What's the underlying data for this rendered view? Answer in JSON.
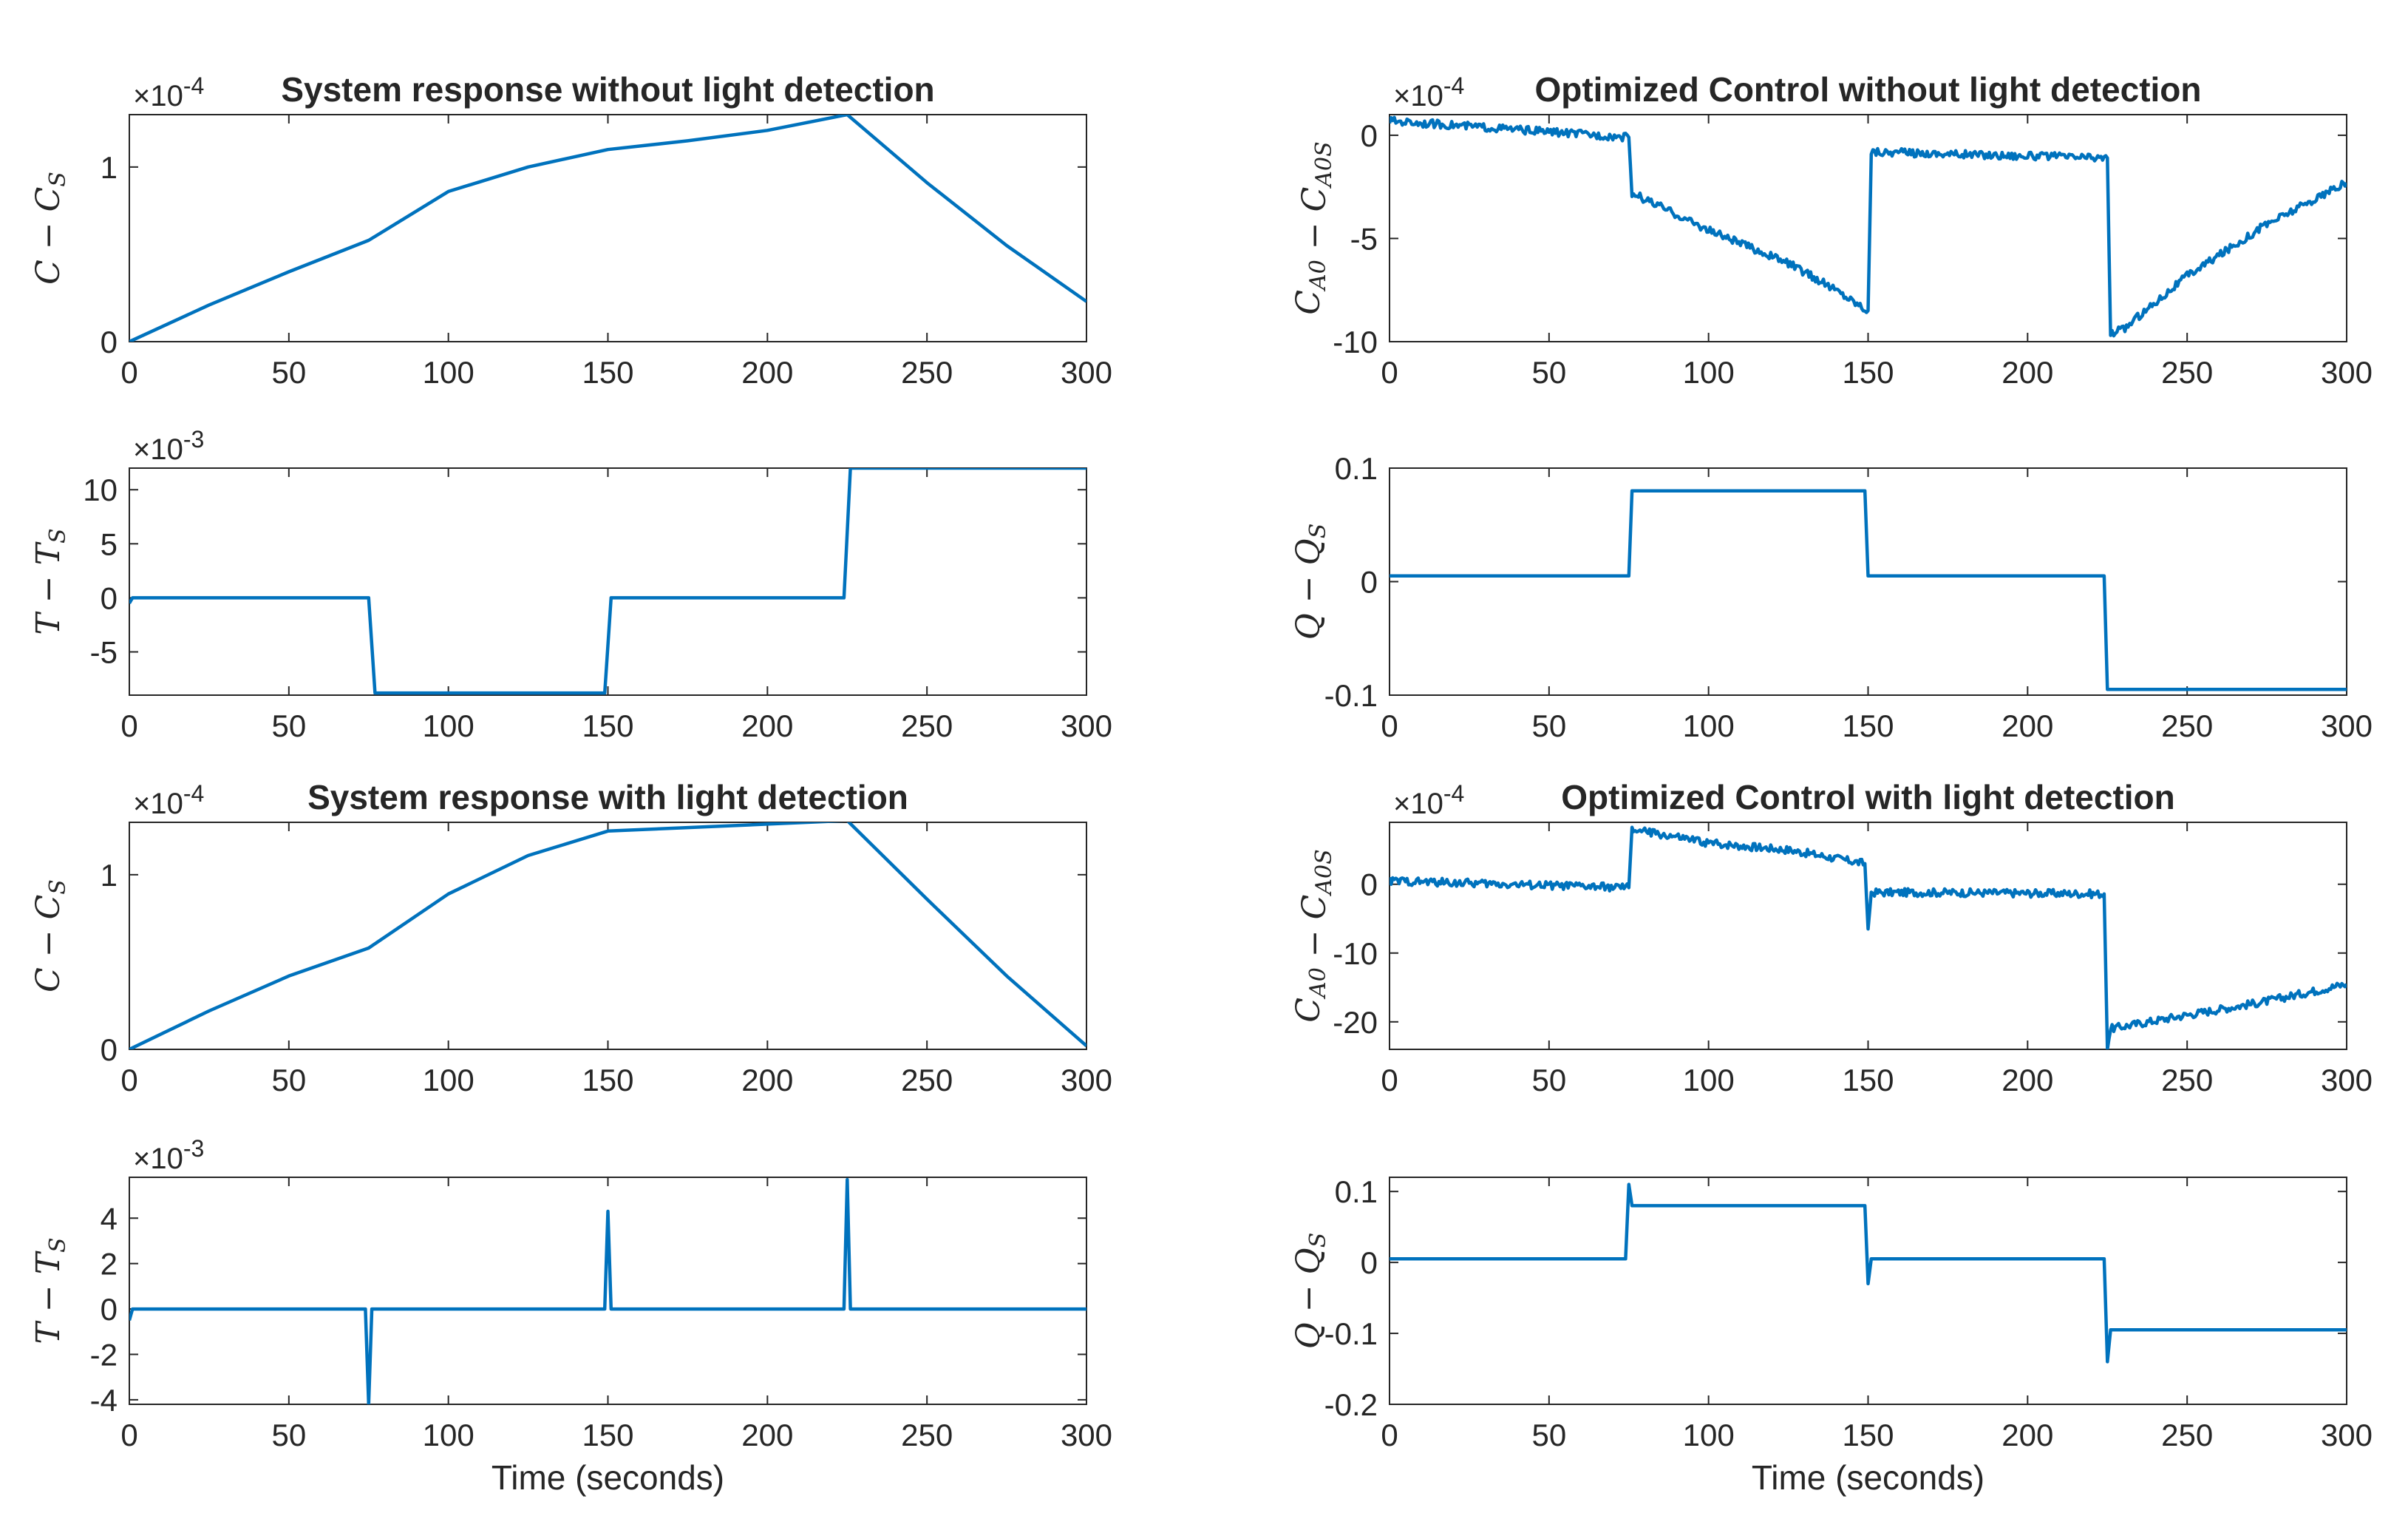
{
  "figure": {
    "line_color": "#0072BD",
    "axis_color": "#262626",
    "background": "#ffffff"
  },
  "chart_data": [
    {
      "id": "p1",
      "type": "line",
      "title": "System response without light detection",
      "ylabel": "C − C_S",
      "exponent": "×10^-4",
      "xlim": [
        0,
        300
      ],
      "ylim": [
        0,
        1.3
      ],
      "xticks": [
        0,
        50,
        100,
        150,
        200,
        250,
        300
      ],
      "yticks": [
        0,
        1
      ],
      "x": [
        0,
        25,
        50,
        75,
        100,
        125,
        150,
        175,
        200,
        225,
        250,
        275,
        300
      ],
      "y": [
        0,
        0.21,
        0.4,
        0.58,
        0.86,
        1.0,
        1.1,
        1.15,
        1.21,
        1.3,
        0.91,
        0.55,
        0.23
      ],
      "series": [
        {
          "name": "C − C_S",
          "x": [
            0,
            25,
            50,
            75,
            100,
            125,
            150,
            175,
            200,
            225,
            250,
            275,
            300
          ],
          "y": [
            0,
            0.21,
            0.4,
            0.58,
            0.86,
            1.0,
            1.1,
            1.15,
            1.21,
            1.3,
            0.91,
            0.55,
            0.23
          ]
        }
      ]
    },
    {
      "id": "p2",
      "type": "line",
      "title": "",
      "ylabel": "T − T_S",
      "exponent": "×10^-3",
      "xlabel": "",
      "xlim": [
        0,
        300
      ],
      "ylim": [
        -9,
        12
      ],
      "xticks": [
        0,
        50,
        100,
        150,
        200,
        250,
        300
      ],
      "yticks": [
        -5,
        0,
        5,
        10
      ],
      "x": [
        0,
        1,
        75,
        77,
        149,
        151,
        224,
        226,
        300
      ],
      "y": [
        -0.5,
        0,
        0,
        -8.8,
        -8.8,
        0,
        0,
        12,
        12
      ],
      "series": [
        {
          "name": "T − T_S",
          "x": [
            0,
            1,
            75,
            77,
            149,
            151,
            224,
            226,
            300
          ],
          "y": [
            -0.5,
            0,
            0,
            -8.8,
            -8.8,
            0,
            0,
            12,
            12
          ]
        }
      ]
    },
    {
      "id": "p3",
      "type": "line",
      "title": "System response with light detection",
      "ylabel": "C − C_S",
      "exponent": "×10^-4",
      "xlim": [
        0,
        300
      ],
      "ylim": [
        0,
        1.3
      ],
      "xticks": [
        0,
        50,
        100,
        150,
        200,
        250,
        300
      ],
      "yticks": [
        0,
        1
      ],
      "x": [
        0,
        25,
        50,
        75,
        100,
        125,
        150,
        175,
        200,
        225,
        250,
        275,
        300
      ],
      "y": [
        0,
        0.22,
        0.42,
        0.58,
        0.89,
        1.11,
        1.25,
        1.27,
        1.29,
        1.31,
        0.86,
        0.42,
        0.02
      ],
      "series": [
        {
          "name": "C − C_S",
          "x": [
            0,
            25,
            50,
            75,
            100,
            125,
            150,
            175,
            200,
            225,
            250,
            275,
            300
          ],
          "y": [
            0,
            0.22,
            0.42,
            0.58,
            0.89,
            1.11,
            1.25,
            1.27,
            1.29,
            1.31,
            0.86,
            0.42,
            0.02
          ]
        }
      ]
    },
    {
      "id": "p4",
      "type": "line",
      "title": "",
      "ylabel": "T − T_S",
      "exponent": "×10^-3",
      "xlabel": "Time (seconds)",
      "xlim": [
        0,
        300
      ],
      "ylim": [
        -4.2,
        5.8
      ],
      "xticks": [
        0,
        50,
        100,
        150,
        200,
        250,
        300
      ],
      "yticks": [
        -4,
        -2,
        0,
        2,
        4
      ],
      "x": [
        0,
        1,
        2,
        74,
        75,
        76,
        149,
        150,
        151,
        224,
        225,
        226,
        300
      ],
      "y": [
        -0.5,
        0,
        0,
        0,
        -4.2,
        0,
        0,
        4.3,
        0,
        0,
        5.7,
        0,
        0
      ],
      "series": [
        {
          "name": "T − T_S",
          "x": [
            0,
            1,
            2,
            74,
            75,
            76,
            149,
            150,
            151,
            224,
            225,
            226,
            300
          ],
          "y": [
            -0.5,
            0,
            0,
            0,
            -4.2,
            0,
            0,
            4.3,
            0,
            0,
            5.7,
            0,
            0
          ]
        }
      ]
    },
    {
      "id": "p5",
      "type": "line",
      "title": "Optimized Control without light detection",
      "ylabel": "C_A0 − C_A0S",
      "exponent": "×10^-4",
      "xlim": [
        0,
        300
      ],
      "ylim": [
        -10,
        1
      ],
      "xticks": [
        0,
        50,
        100,
        150,
        200,
        250,
        300
      ],
      "yticks": [
        -10,
        -5,
        0
      ],
      "x": [
        0,
        75,
        76,
        100,
        125,
        140,
        150,
        151,
        175,
        200,
        225,
        226,
        230,
        250,
        275,
        300
      ],
      "y": [
        0.7,
        -0.1,
        -2.8,
        -4.6,
        -6.2,
        -7.5,
        -8.5,
        -0.8,
        -0.9,
        -1.0,
        -1.1,
        -9.6,
        -9.4,
        -6.8,
        -4.3,
        -2.3
      ],
      "series": [
        {
          "name": "C_A0 − C_A0S",
          "x": [
            0,
            75,
            76,
            100,
            125,
            140,
            150,
            151,
            175,
            200,
            225,
            226,
            230,
            250,
            275,
            300
          ],
          "y": [
            0.7,
            -0.1,
            -2.8,
            -4.6,
            -6.2,
            -7.5,
            -8.5,
            -0.8,
            -0.9,
            -1.0,
            -1.1,
            -9.6,
            -9.4,
            -6.8,
            -4.3,
            -2.3
          ]
        }
      ]
    },
    {
      "id": "p6",
      "type": "line",
      "title": "",
      "ylabel": "Q − Q_S",
      "xlabel": "",
      "xlim": [
        0,
        300
      ],
      "ylim": [
        -0.1,
        0.1
      ],
      "xticks": [
        0,
        50,
        100,
        150,
        200,
        250,
        300
      ],
      "yticks": [
        -0.1,
        0,
        0.1
      ],
      "yticklabels": [
        "-0.1",
        "0",
        "0.1"
      ],
      "x": [
        0,
        75,
        76,
        149,
        150,
        224,
        225,
        300
      ],
      "y": [
        0.005,
        0.005,
        0.08,
        0.08,
        0.005,
        0.005,
        -0.095,
        -0.095
      ],
      "series": [
        {
          "name": "Q − Q_S",
          "x": [
            0,
            75,
            76,
            149,
            150,
            224,
            225,
            300
          ],
          "y": [
            0.005,
            0.005,
            0.08,
            0.08,
            0.005,
            0.005,
            -0.095,
            -0.095
          ]
        }
      ]
    },
    {
      "id": "p7",
      "type": "line",
      "title": "Optimized Control with light detection",
      "ylabel": "C_A0 − C_A0S",
      "exponent": "×10^-4",
      "xlim": [
        0,
        300
      ],
      "ylim": [
        -24,
        9
      ],
      "xticks": [
        0,
        50,
        100,
        150,
        200,
        250,
        300
      ],
      "yticks": [
        -20,
        -10,
        0
      ],
      "x": [
        0,
        75,
        76,
        100,
        125,
        149,
        150,
        151,
        175,
        200,
        224,
        225,
        226,
        250,
        275,
        300
      ],
      "y": [
        0.5,
        -0.5,
        8,
        6,
        5,
        3,
        -6.5,
        -1.2,
        -1.2,
        -1.3,
        -1.4,
        -24,
        -21,
        -19,
        -17,
        -14.5
      ],
      "series": [
        {
          "name": "C_A0 − C_A0S",
          "x": [
            0,
            75,
            76,
            100,
            125,
            149,
            150,
            151,
            175,
            200,
            224,
            225,
            226,
            250,
            275,
            300
          ],
          "y": [
            0.5,
            -0.5,
            8,
            6,
            5,
            3,
            -6.5,
            -1.2,
            -1.2,
            -1.3,
            -1.4,
            -24,
            -21,
            -19,
            -17,
            -14.5
          ]
        }
      ]
    },
    {
      "id": "p8",
      "type": "line",
      "title": "",
      "ylabel": "Q − Q_S",
      "xlabel": "Time (seconds)",
      "xlim": [
        0,
        300
      ],
      "ylim": [
        -0.2,
        0.12
      ],
      "xticks": [
        0,
        50,
        100,
        150,
        200,
        250,
        300
      ],
      "yticks": [
        -0.2,
        -0.1,
        0,
        0.1
      ],
      "yticklabels": [
        "-0.2",
        "-0.1",
        "0",
        "0.1"
      ],
      "x": [
        0,
        74,
        75,
        76,
        149,
        150,
        151,
        224,
        225,
        226,
        300
      ],
      "y": [
        0.005,
        0.005,
        0.11,
        0.08,
        0.08,
        -0.03,
        0.005,
        0.005,
        -0.14,
        -0.095,
        -0.095
      ],
      "series": [
        {
          "name": "Q − Q_S",
          "x": [
            0,
            74,
            75,
            76,
            149,
            150,
            151,
            224,
            225,
            226,
            300
          ],
          "y": [
            0.005,
            0.005,
            0.11,
            0.08,
            0.08,
            -0.03,
            0.005,
            0.005,
            -0.14,
            -0.095,
            -0.095
          ]
        }
      ]
    }
  ]
}
